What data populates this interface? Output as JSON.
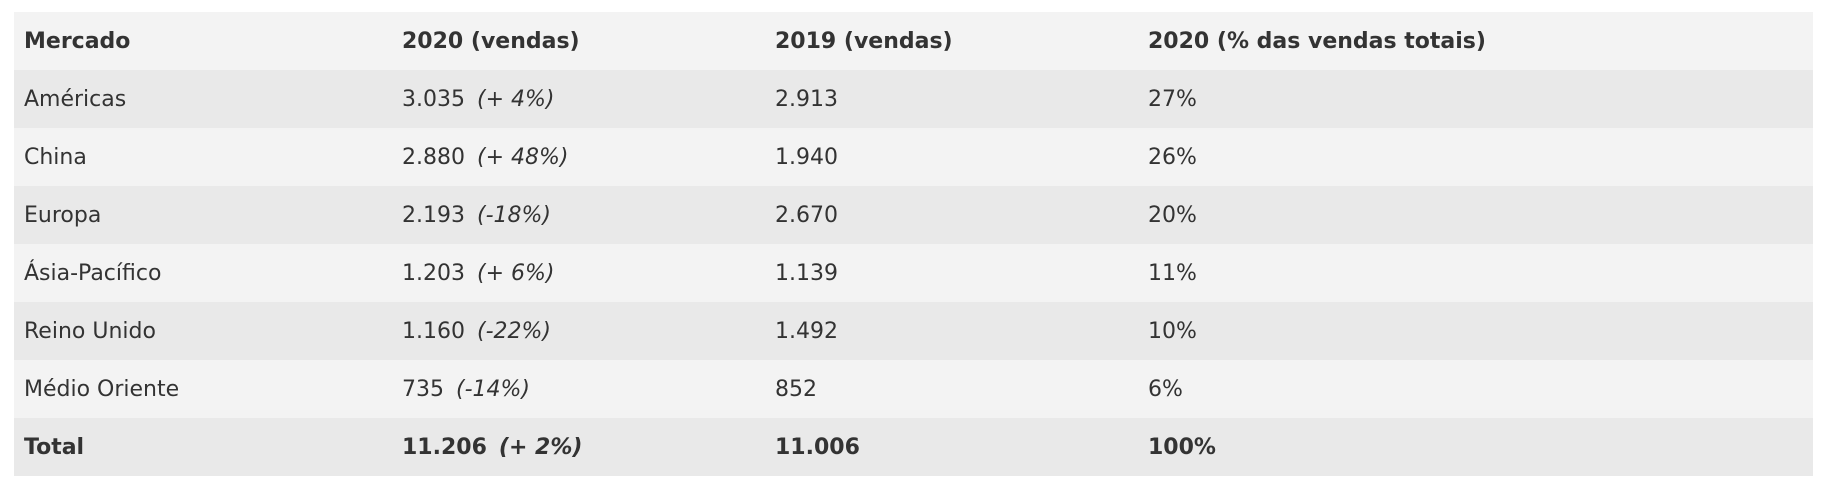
{
  "table": {
    "header": [
      "Mercado",
      "2020 (vendas)",
      "2019 (vendas)",
      "2020 (% das vendas totais)"
    ],
    "rows": [
      [
        "Américas",
        "3.035",
        "(+ 4%)",
        "2.913",
        "27%"
      ],
      [
        "China",
        "2.880",
        "(+ 48%)",
        "1.940",
        "26%"
      ],
      [
        "Europa",
        "2.193",
        "(-18%)",
        "2.670",
        "20%"
      ],
      [
        "Ásia-Pacífico",
        "1.203",
        "(+ 6%)",
        "1.139",
        "11%"
      ],
      [
        "Reino Unido",
        "1.160",
        "(-22%)",
        "1.492",
        "10%"
      ],
      [
        "Médio Oriente",
        "735",
        "(-14%)",
        "852",
        "6%"
      ]
    ],
    "total": [
      "Total",
      "11.206",
      "(+ 2%)",
      "11.006",
      "100%"
    ]
  }
}
